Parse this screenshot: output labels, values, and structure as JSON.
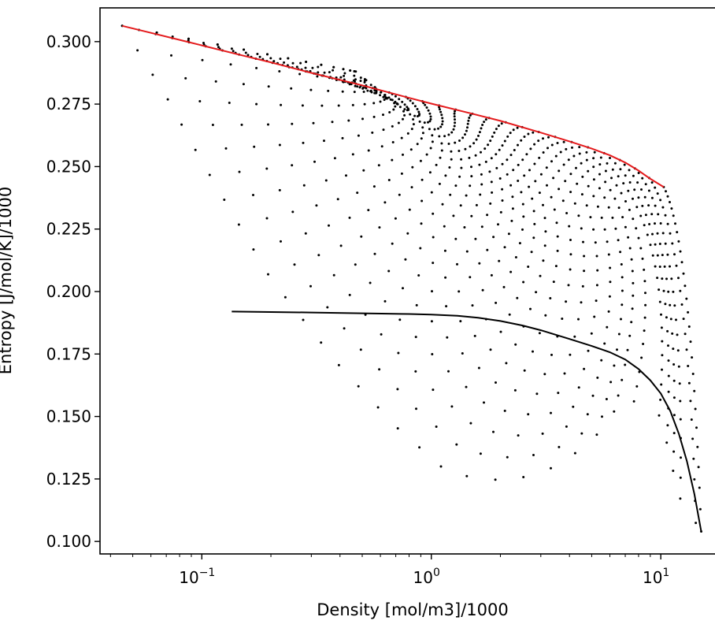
{
  "chart_data": {
    "type": "scatter",
    "xlabel": "Density [mol/m3]/1000",
    "ylabel": "Entropy [J/mol/K]/1000",
    "x_scale": "log",
    "xlim": [
      0.036,
      17.5
    ],
    "ylim": [
      0.095,
      0.3135
    ],
    "grid": false,
    "legend": "none",
    "x_ticks": [
      {
        "value": 0.1,
        "base": "10",
        "exp": "−1"
      },
      {
        "value": 1,
        "base": "10",
        "exp": "0"
      },
      {
        "value": 10,
        "base": "10",
        "exp": "1"
      }
    ],
    "y_ticks": [
      {
        "value": 0.1,
        "label": "0.100"
      },
      {
        "value": 0.125,
        "label": "0.125"
      },
      {
        "value": 0.15,
        "label": "0.150"
      },
      {
        "value": 0.175,
        "label": "0.175"
      },
      {
        "value": 0.2,
        "label": "0.200"
      },
      {
        "value": 0.225,
        "label": "0.225"
      },
      {
        "value": 0.25,
        "label": "0.250"
      },
      {
        "value": 0.275,
        "label": "0.275"
      },
      {
        "value": 0.3,
        "label": "0.300"
      }
    ],
    "series": [
      {
        "kind": "line",
        "color": "#e41a1c",
        "points": [
          [
            0.045,
            0.3063
          ],
          [
            0.06,
            0.3035
          ],
          [
            0.08,
            0.3007
          ],
          [
            0.1,
            0.2985
          ],
          [
            0.15,
            0.2945
          ],
          [
            0.2,
            0.2917
          ],
          [
            0.3,
            0.2875
          ],
          [
            0.5,
            0.2825
          ],
          [
            0.8,
            0.2775
          ],
          [
            1.0,
            0.2752
          ],
          [
            1.5,
            0.2712
          ],
          [
            2.0,
            0.2683
          ],
          [
            3.0,
            0.2636
          ],
          [
            4.0,
            0.2601
          ],
          [
            5.0,
            0.2572
          ],
          [
            6.0,
            0.2545
          ],
          [
            7.0,
            0.2516
          ],
          [
            8.0,
            0.2484
          ],
          [
            9.0,
            0.2451
          ],
          [
            10.3,
            0.2418
          ]
        ]
      },
      {
        "kind": "line",
        "color": "#000000",
        "points": [
          [
            0.135,
            0.192
          ],
          [
            0.2,
            0.1918
          ],
          [
            0.3,
            0.1916
          ],
          [
            0.5,
            0.1913
          ],
          [
            0.8,
            0.191
          ],
          [
            1.0,
            0.1908
          ],
          [
            1.3,
            0.1903
          ],
          [
            1.6,
            0.1895
          ],
          [
            2.0,
            0.1882
          ],
          [
            2.5,
            0.1864
          ],
          [
            3.0,
            0.1845
          ],
          [
            4.0,
            0.181
          ],
          [
            5.0,
            0.1782
          ],
          [
            6.0,
            0.1757
          ],
          [
            7.0,
            0.1728
          ],
          [
            8.0,
            0.169
          ],
          [
            9.0,
            0.1645
          ],
          [
            10.0,
            0.1592
          ],
          [
            11.0,
            0.1522
          ],
          [
            12.0,
            0.143
          ],
          [
            13.0,
            0.132
          ],
          [
            14.0,
            0.119
          ],
          [
            15.0,
            0.104
          ]
        ]
      }
    ],
    "dot_grid": {
      "color": "#000000",
      "upper_boundary_s": [
        0.3063,
        0.2418
      ],
      "lower_boundary": [
        [
          0.045,
          0.3063
        ],
        [
          0.07,
          0.278
        ],
        [
          0.1,
          0.252
        ],
        [
          0.2,
          0.205
        ],
        [
          0.4,
          0.17
        ],
        [
          0.7,
          0.146
        ],
        [
          1.2,
          0.127
        ],
        [
          2.2,
          0.124
        ],
        [
          3.5,
          0.13
        ],
        [
          5.0,
          0.14
        ],
        [
          7.0,
          0.158
        ],
        [
          10.0,
          0.15
        ],
        [
          12.0,
          0.118
        ],
        [
          15.0,
          0.104
        ]
      ],
      "isotherm_count": 34
    }
  }
}
